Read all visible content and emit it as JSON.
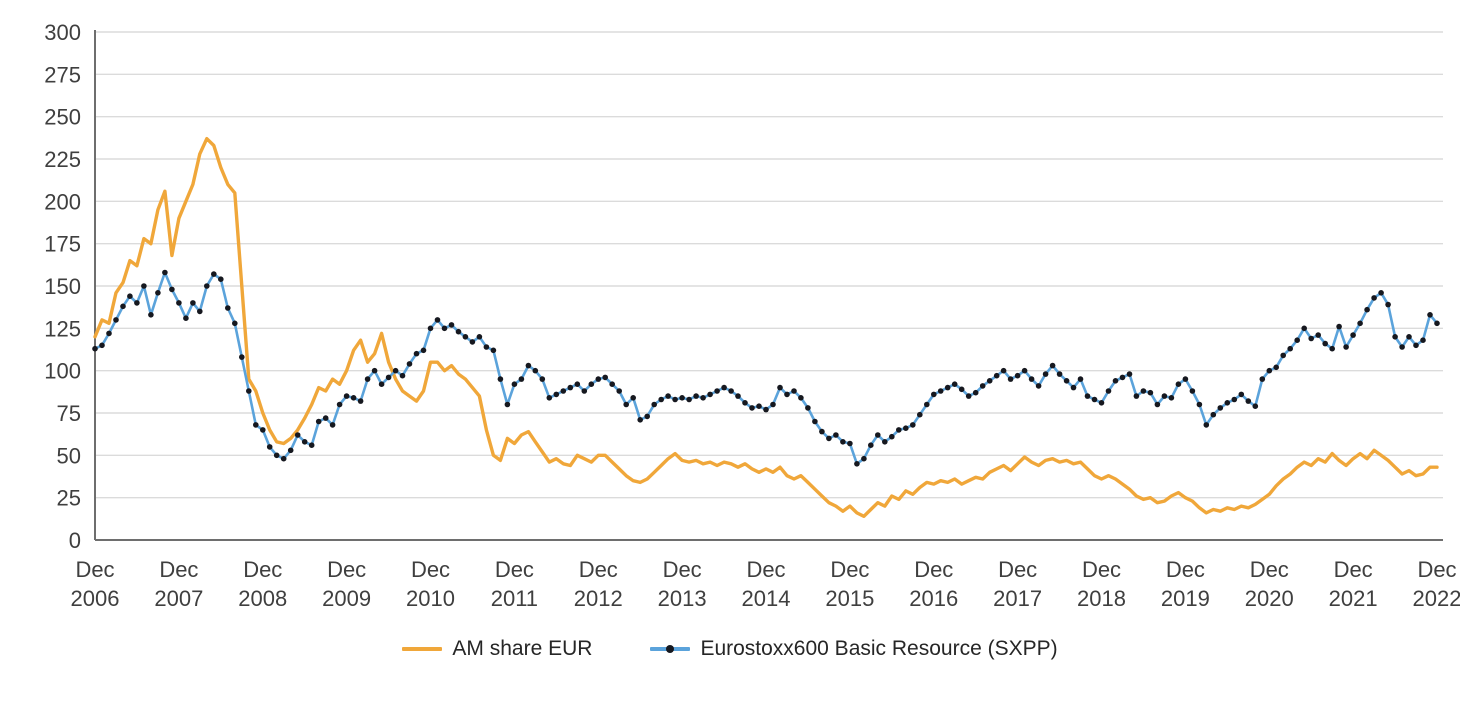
{
  "chart_data": {
    "type": "line",
    "title": "",
    "xlabel": "",
    "ylabel": "",
    "x_unit": "month",
    "x_start": "Dec 2006",
    "x_end": "Dec 2022",
    "x_tick_prefix": "Dec",
    "x_tick_years": [
      "2006",
      "2007",
      "2008",
      "2009",
      "2010",
      "2011",
      "2012",
      "2013",
      "2014",
      "2015",
      "2016",
      "2017",
      "2018",
      "2019",
      "2020",
      "2021",
      "2022"
    ],
    "x_tick_interval_months": 12,
    "ylim": [
      0,
      300
    ],
    "y_ticks": [
      0,
      25,
      50,
      75,
      100,
      125,
      150,
      175,
      200,
      225,
      250,
      275,
      300
    ],
    "grid": "horizontal",
    "legend_position": "bottom",
    "colors": {
      "grid": "#DBDBDB",
      "axis": "#6E6E6E",
      "tick_text": "#3F3F3F",
      "legend_text": "#262626",
      "background": "#FFFFFF"
    },
    "series": [
      {
        "name": "AM share EUR",
        "color": "#F0A73A",
        "line_width": 3.4,
        "markers": false,
        "values": [
          120,
          130,
          128,
          146,
          152,
          165,
          162,
          178,
          175,
          195,
          206,
          168,
          190,
          200,
          210,
          228,
          237,
          233,
          220,
          210,
          205,
          150,
          95,
          88,
          75,
          65,
          58,
          57,
          60,
          65,
          72,
          80,
          90,
          88,
          95,
          92,
          100,
          112,
          118,
          105,
          110,
          122,
          105,
          95,
          88,
          85,
          82,
          88,
          105,
          105,
          100,
          103,
          98,
          95,
          90,
          85,
          65,
          50,
          47,
          60,
          57,
          62,
          64,
          58,
          52,
          46,
          48,
          45,
          44,
          50,
          48,
          46,
          50,
          50,
          46,
          42,
          38,
          35,
          34,
          36,
          40,
          44,
          48,
          51,
          47,
          46,
          47,
          45,
          46,
          44,
          46,
          45,
          43,
          45,
          42,
          40,
          42,
          40,
          43,
          38,
          36,
          38,
          34,
          30,
          26,
          22,
          20,
          17,
          20,
          16,
          14,
          18,
          22,
          20,
          26,
          24,
          29,
          27,
          31,
          34,
          33,
          35,
          34,
          36,
          33,
          35,
          37,
          36,
          40,
          42,
          44,
          41,
          45,
          49,
          46,
          44,
          47,
          48,
          46,
          47,
          45,
          46,
          42,
          38,
          36,
          38,
          36,
          33,
          30,
          26,
          24,
          25,
          22,
          23,
          26,
          28,
          25,
          23,
          19,
          16,
          18,
          17,
          19,
          18,
          20,
          19,
          21,
          24,
          27,
          32,
          36,
          39,
          43,
          46,
          44,
          48,
          46,
          51,
          47,
          44,
          48,
          51,
          48,
          53,
          50,
          47,
          43,
          39,
          41,
          38,
          39,
          43,
          43
        ]
      },
      {
        "name": "Eurostoxx600 Basic Resource (SXPP)",
        "color": "#5BA3DB",
        "line_width": 2.6,
        "markers": true,
        "marker_color": "#16181F",
        "marker_radius": 2.8,
        "values": [
          113,
          115,
          122,
          130,
          138,
          144,
          140,
          150,
          133,
          146,
          158,
          148,
          140,
          131,
          140,
          135,
          150,
          157,
          154,
          137,
          128,
          108,
          88,
          68,
          65,
          55,
          50,
          48,
          53,
          62,
          58,
          56,
          70,
          72,
          68,
          80,
          85,
          84,
          82,
          95,
          100,
          92,
          96,
          100,
          97,
          104,
          110,
          112,
          125,
          130,
          125,
          127,
          123,
          120,
          117,
          120,
          114,
          112,
          95,
          80,
          92,
          95,
          103,
          100,
          95,
          84,
          86,
          88,
          90,
          92,
          88,
          92,
          95,
          96,
          92,
          88,
          80,
          84,
          71,
          73,
          80,
          83,
          85,
          83,
          84,
          83,
          85,
          84,
          86,
          88,
          90,
          88,
          85,
          81,
          78,
          79,
          77,
          80,
          90,
          86,
          88,
          84,
          78,
          70,
          64,
          60,
          62,
          58,
          57,
          45,
          48,
          56,
          62,
          58,
          61,
          65,
          66,
          68,
          74,
          80,
          86,
          88,
          90,
          92,
          89,
          85,
          87,
          91,
          94,
          97,
          100,
          95,
          97,
          100,
          95,
          91,
          98,
          103,
          98,
          94,
          90,
          95,
          85,
          83,
          81,
          88,
          94,
          96,
          98,
          85,
          88,
          87,
          80,
          85,
          84,
          92,
          95,
          88,
          80,
          68,
          74,
          78,
          81,
          83,
          86,
          82,
          79,
          95,
          100,
          102,
          109,
          113,
          118,
          125,
          119,
          121,
          116,
          113,
          126,
          114,
          121,
          128,
          136,
          143,
          146,
          139,
          120,
          114,
          120,
          115,
          118,
          133,
          128
        ]
      }
    ]
  }
}
